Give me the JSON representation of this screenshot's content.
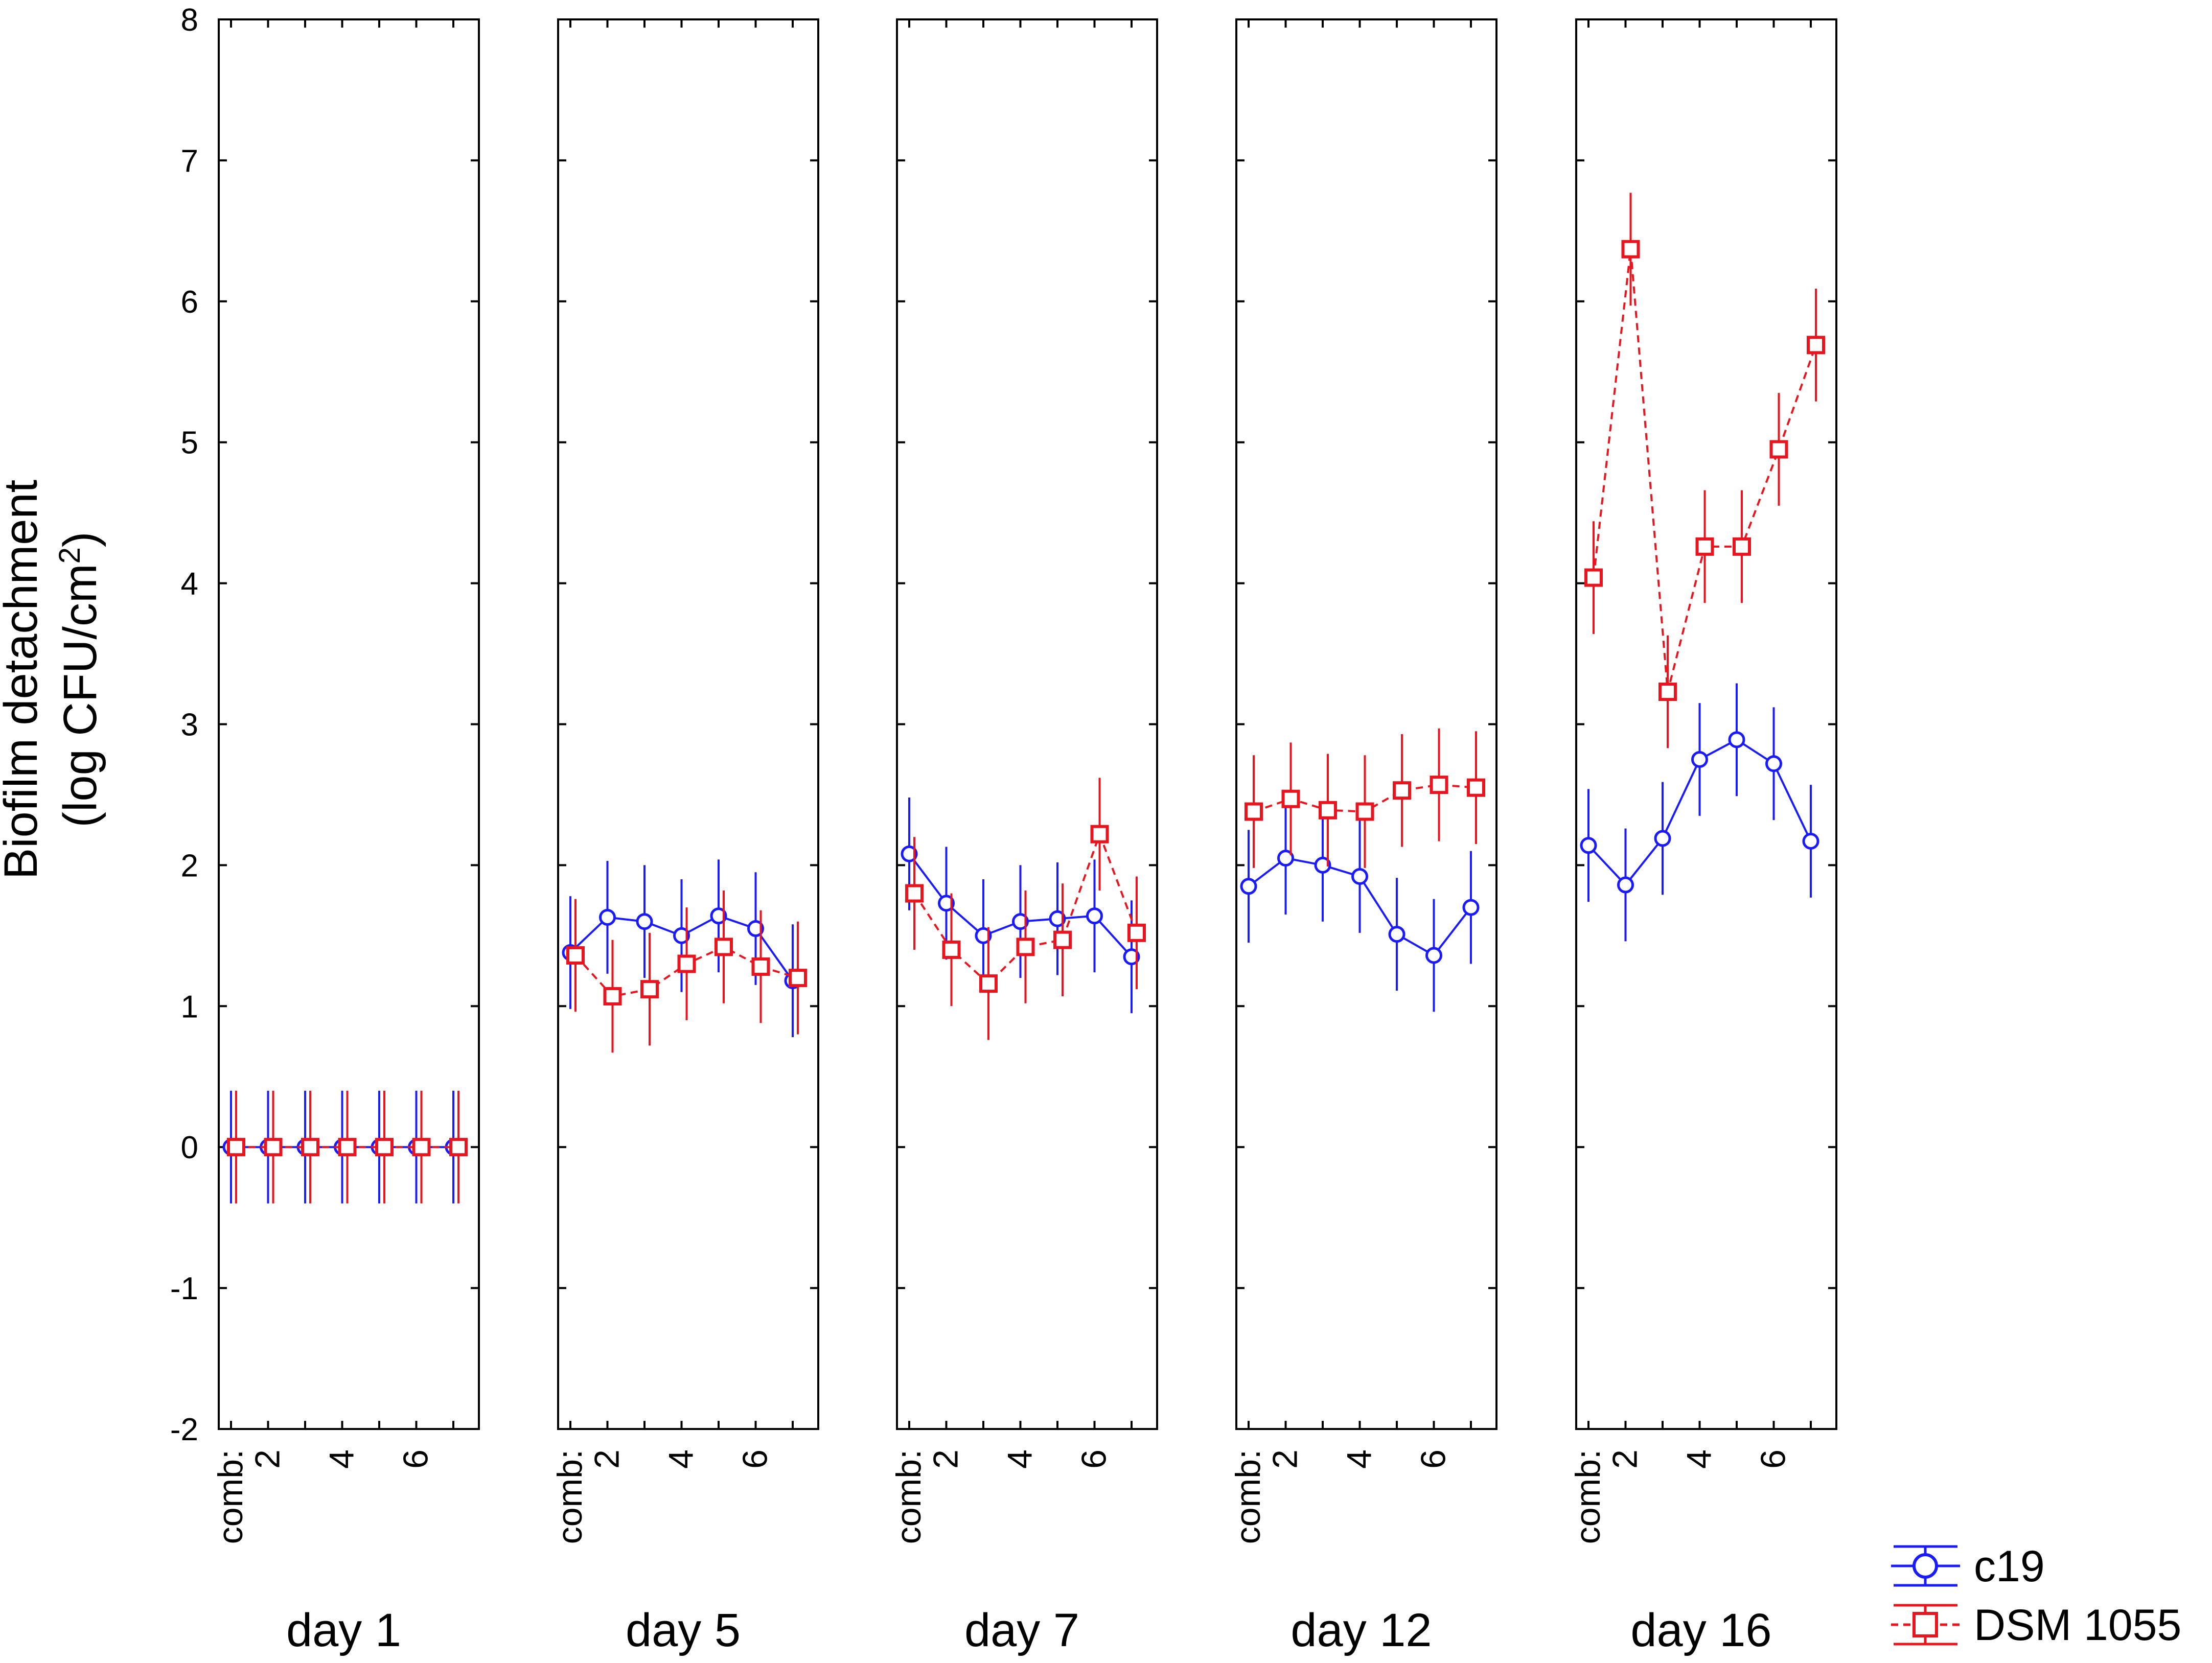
{
  "chart_data": {
    "type": "line",
    "ylabel_line1": "Biofilm detachment",
    "ylabel_line2_prefix": "(log CFU/cm",
    "ylabel_line2_sup": "2",
    "ylabel_line2_suffix": ")",
    "ylim": [
      -2,
      8
    ],
    "yticks": [
      -2,
      -1,
      0,
      1,
      2,
      3,
      4,
      5,
      6,
      7,
      8
    ],
    "x_label_first": "comb:",
    "x_tick_labels": [
      "2",
      "4",
      "6"
    ],
    "x_tick_positions": [
      2,
      4,
      6
    ],
    "x_categories": [
      1,
      2,
      3,
      4,
      5,
      6,
      7
    ],
    "series_meta": [
      {
        "name": "c19",
        "color": "#1a1aff",
        "marker": "circle",
        "dash": "solid"
      },
      {
        "name": "DSM 1055",
        "color": "#e8141e",
        "marker": "square",
        "dash": "dashed"
      }
    ],
    "panels": [
      {
        "label": "day 1",
        "series": [
          {
            "name": "c19",
            "values": [
              0,
              0,
              0,
              0,
              0,
              0,
              0
            ],
            "errors": [
              0.4,
              0.4,
              0.4,
              0.4,
              0.4,
              0.4,
              0.4
            ]
          },
          {
            "name": "DSM 1055",
            "values": [
              0,
              0,
              0,
              0,
              0,
              0,
              0
            ],
            "errors": [
              0.4,
              0.4,
              0.4,
              0.4,
              0.4,
              0.4,
              0.4
            ]
          }
        ]
      },
      {
        "label": "day 5",
        "series": [
          {
            "name": "c19",
            "values": [
              1.38,
              1.63,
              1.6,
              1.5,
              1.64,
              1.55,
              1.18
            ],
            "errors": [
              0.4,
              0.4,
              0.4,
              0.4,
              0.4,
              0.4,
              0.4
            ]
          },
          {
            "name": "DSM 1055",
            "values": [
              1.36,
              1.07,
              1.12,
              1.3,
              1.42,
              1.28,
              1.2
            ],
            "errors": [
              0.4,
              0.4,
              0.4,
              0.4,
              0.4,
              0.4,
              0.4
            ]
          }
        ]
      },
      {
        "label": "day 7",
        "series": [
          {
            "name": "c19",
            "values": [
              2.08,
              1.73,
              1.5,
              1.6,
              1.62,
              1.64,
              1.35
            ],
            "errors": [
              0.4,
              0.4,
              0.4,
              0.4,
              0.4,
              0.4,
              0.4
            ]
          },
          {
            "name": "DSM 1055",
            "values": [
              1.8,
              1.4,
              1.16,
              1.42,
              1.47,
              2.22,
              1.52
            ],
            "errors": [
              0.4,
              0.4,
              0.4,
              0.4,
              0.4,
              0.4,
              0.4
            ]
          }
        ]
      },
      {
        "label": "day 12",
        "series": [
          {
            "name": "c19",
            "values": [
              1.85,
              2.05,
              2.0,
              1.92,
              1.51,
              1.36,
              1.7
            ],
            "errors": [
              0.4,
              0.4,
              0.4,
              0.4,
              0.4,
              0.4,
              0.4
            ]
          },
          {
            "name": "DSM 1055",
            "values": [
              2.38,
              2.47,
              2.39,
              2.38,
              2.53,
              2.57,
              2.55
            ],
            "errors": [
              0.4,
              0.4,
              0.4,
              0.4,
              0.4,
              0.4,
              0.4
            ]
          }
        ]
      },
      {
        "label": "day 16",
        "series": [
          {
            "name": "c19",
            "values": [
              2.14,
              1.86,
              2.19,
              2.75,
              2.89,
              2.72,
              2.17
            ],
            "errors": [
              0.4,
              0.4,
              0.4,
              0.4,
              0.4,
              0.4,
              0.4
            ]
          },
          {
            "name": "DSM 1055",
            "values": [
              4.04,
              6.37,
              3.23,
              4.26,
              4.26,
              4.95,
              5.69
            ],
            "errors": [
              0.4,
              0.4,
              0.4,
              0.4,
              0.4,
              0.4,
              0.4
            ]
          }
        ]
      }
    ]
  }
}
